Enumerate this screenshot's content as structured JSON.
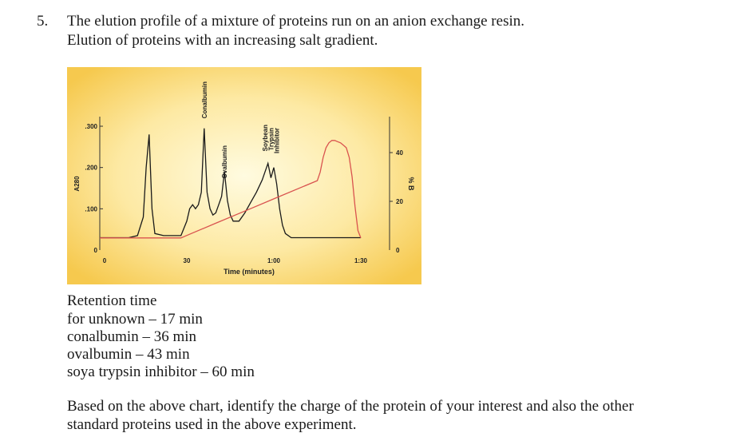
{
  "question": {
    "number": "5.",
    "line1": "The elution profile of a mixture of proteins run on an anion exchange resin.",
    "line2": "Elution of proteins with an increasing salt gradient."
  },
  "chart_data": {
    "type": "line",
    "xlabel": "Time (minutes)",
    "ylabel_left": "A280",
    "ylabel_right": "% B",
    "x_ticks": [
      {
        "label": "0",
        "value": 0
      },
      {
        "label": "30",
        "value": 30
      },
      {
        "label": "1:00",
        "value": 60
      },
      {
        "label": "1:30",
        "value": 90
      }
    ],
    "x_range": [
      0,
      100
    ],
    "y_left_ticks": [
      {
        "label": "0",
        "value": 0
      },
      {
        "label": ".100",
        "value": 0.1
      },
      {
        "label": ".200",
        "value": 0.2
      },
      {
        "label": ".300",
        "value": 0.3
      }
    ],
    "y_left_range": [
      0,
      0.35
    ],
    "y_right_ticks": [
      {
        "label": "0",
        "value": 0
      },
      {
        "label": "20",
        "value": 20
      },
      {
        "label": "40",
        "value": 40
      }
    ],
    "y_right_range": [
      0,
      60
    ],
    "peak_labels": [
      {
        "text": "Conalbumin",
        "x": 36
      },
      {
        "text": "Ovalbumin",
        "x": 43
      },
      {
        "text": "Soybean",
        "x": 57
      },
      {
        "text": "Trypsin",
        "x": 59
      },
      {
        "text": "Inhibitor",
        "x": 61
      }
    ],
    "series": [
      {
        "key": "absorbance",
        "color": "#1a1a1a",
        "x": [
          0,
          10,
          13,
          15,
          16,
          17,
          18,
          19,
          22,
          28,
          30,
          31,
          32,
          33,
          34,
          35,
          36,
          37,
          38,
          39,
          40,
          41,
          42,
          43,
          44,
          45,
          46,
          48,
          50,
          52,
          54,
          56,
          57,
          58,
          59,
          60,
          61,
          62,
          63,
          64,
          66,
          70,
          75,
          80,
          85,
          90
        ],
        "y": [
          0.03,
          0.03,
          0.035,
          0.08,
          0.2,
          0.28,
          0.1,
          0.04,
          0.035,
          0.035,
          0.07,
          0.1,
          0.11,
          0.1,
          0.11,
          0.14,
          0.295,
          0.14,
          0.1,
          0.085,
          0.09,
          0.11,
          0.13,
          0.19,
          0.12,
          0.085,
          0.07,
          0.07,
          0.09,
          0.115,
          0.14,
          0.17,
          0.19,
          0.21,
          0.175,
          0.2,
          0.16,
          0.1,
          0.06,
          0.04,
          0.03,
          0.03,
          0.03,
          0.03,
          0.03,
          0.03
        ]
      },
      {
        "key": "gradient",
        "color": "#d9534f",
        "axis": "right",
        "x": [
          0,
          28,
          30,
          40,
          50,
          60,
          70,
          75,
          76,
          77,
          78,
          79,
          80,
          81,
          82,
          83,
          84,
          85,
          86,
          87,
          88,
          89,
          90
        ],
        "y": [
          5,
          5,
          6,
          11,
          16,
          21,
          26,
          28.5,
          32,
          38,
          42,
          44,
          45,
          45,
          44.5,
          44,
          43,
          42,
          38,
          30,
          18,
          8,
          5
        ]
      }
    ]
  },
  "retention": {
    "title": "Retention time",
    "lines": [
      "for unknown – 17 min",
      "conalbumin – 36 min",
      "ovalbumin – 43 min",
      "soya trypsin inhibitor – 60 min"
    ]
  },
  "prompt": "Based on the above chart, identify the charge of the protein of your interest and also the other standard proteins used in the above experiment."
}
